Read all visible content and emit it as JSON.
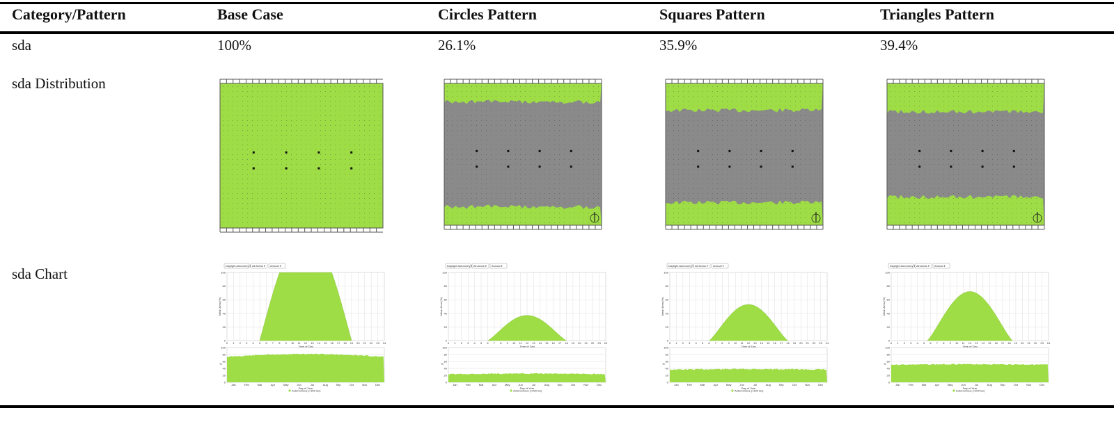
{
  "table": {
    "headers": [
      "Category/Pattern",
      "Base Case",
      "Circles Pattern",
      "Squares Pattern",
      "Triangles Pattern"
    ],
    "rows": [
      {
        "label": "sda",
        "values": [
          "100%",
          "26.1%",
          "35.9%",
          "39.4%"
        ]
      },
      {
        "label": "sda Distribution"
      },
      {
        "label": "sda Chart"
      }
    ]
  },
  "colors": {
    "lit": "#9edd45",
    "unlit": "#8a8a8a",
    "rule": "#000000"
  },
  "distribution": [
    {
      "pattern": "Base Case",
      "lit_top_fraction": 1.0,
      "lit_bottom_fraction": 0.0
    },
    {
      "pattern": "Circles Pattern",
      "lit_top_fraction": 0.13,
      "lit_bottom_fraction": 0.13
    },
    {
      "pattern": "Squares Pattern",
      "lit_top_fraction": 0.19,
      "lit_bottom_fraction": 0.16
    },
    {
      "pattern": "Triangles Pattern",
      "lit_top_fraction": 0.2,
      "lit_bottom_fraction": 0.2
    }
  ],
  "mini_charts": {
    "dropdowns": [
      "Daylight Autonomy",
      "All Areas",
      "Annual"
    ],
    "top_chart": {
      "xlabel": "Time of Day",
      "ylabel": "Mean Area (%)",
      "x_ticks": [
        "0",
        "1",
        "2",
        "3",
        "4",
        "5",
        "6",
        "7",
        "8",
        "9",
        "10",
        "11",
        "12",
        "13",
        "14",
        "15",
        "16",
        "17",
        "18",
        "19",
        "20",
        "21",
        "22",
        "23",
        "24"
      ],
      "y_ticks": [
        "0",
        "20",
        "40",
        "60",
        "80",
        "100"
      ]
    },
    "bottom_chart": {
      "xlabel": "Day of Year",
      "ylabel": "%",
      "x_ticks": [
        "Jan",
        "Feb",
        "Mar",
        "Apr",
        "May",
        "Jun",
        "Jul",
        "Aug",
        "Sep",
        "Oct",
        "Nov",
        "Dec"
      ],
      "y_ticks": [
        "0",
        "20",
        "40",
        "60",
        "80",
        "100"
      ]
    },
    "legend": "Autonomous (>300 lux)",
    "series": [
      {
        "pattern": "Base Case",
        "peak": 100,
        "start_hour": 5,
        "end_hour": 19,
        "annual_level": 75
      },
      {
        "pattern": "Circles Pattern",
        "peak": 37,
        "start_hour": 6,
        "end_hour": 18,
        "annual_level": 25
      },
      {
        "pattern": "Squares Pattern",
        "peak": 53,
        "start_hour": 6,
        "end_hour": 18,
        "annual_level": 38
      },
      {
        "pattern": "Triangles Pattern",
        "peak": 72,
        "start_hour": 5.5,
        "end_hour": 18.5,
        "annual_level": 52
      }
    ]
  }
}
